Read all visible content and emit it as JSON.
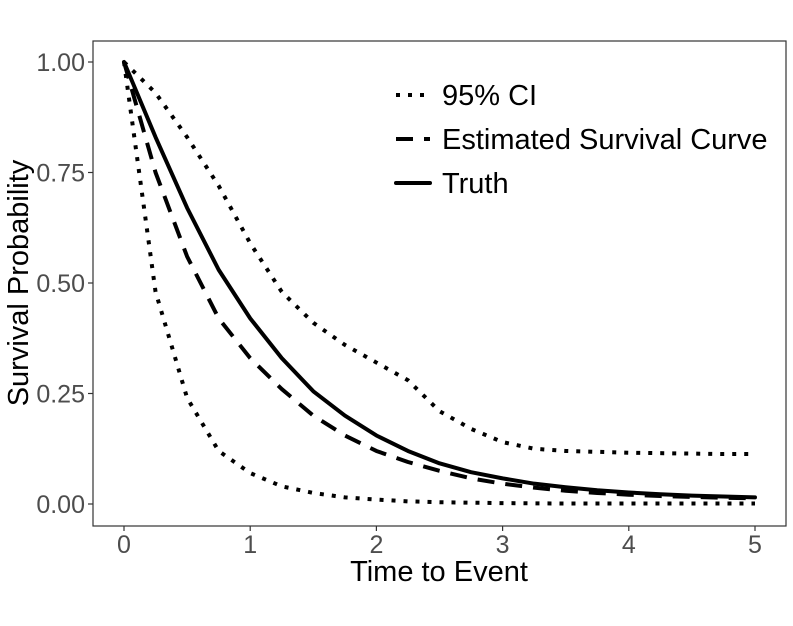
{
  "chart_data": {
    "type": "line",
    "title": "",
    "xlabel": "Time to Event",
    "ylabel": "Survival Probability",
    "xlim": [
      0,
      5
    ],
    "ylim": [
      0,
      1
    ],
    "x_ticks": [
      0,
      1,
      2,
      3,
      4,
      5
    ],
    "x_tick_labels": [
      "0",
      "1",
      "2",
      "3",
      "4",
      "5"
    ],
    "y_ticks": [
      0,
      0.25,
      0.5,
      0.75,
      1
    ],
    "y_tick_labels": [
      "0.00",
      "0.25",
      "0.50",
      "0.75",
      "1.00"
    ],
    "grid": false,
    "legend_position": "top-right",
    "x": [
      0,
      0.25,
      0.5,
      0.75,
      1,
      1.25,
      1.5,
      1.75,
      2,
      2.25,
      2.5,
      2.75,
      3,
      3.25,
      3.5,
      3.75,
      4,
      4.25,
      4.5,
      4.75,
      5
    ],
    "series": [
      {
        "name": "95% CI",
        "style": "dotted",
        "color": "#000000",
        "values": [
          1,
          0.93,
          0.83,
          0.72,
          0.59,
          0.48,
          0.41,
          0.36,
          0.32,
          0.28,
          0.21,
          0.17,
          0.14,
          0.125,
          0.12,
          0.118,
          0.116,
          0.115,
          0.114,
          0.113,
          0.113
        ]
      },
      {
        "name": "95% CI",
        "style": "dotted",
        "color": "#000000",
        "values": [
          1,
          0.48,
          0.24,
          0.12,
          0.07,
          0.04,
          0.025,
          0.015,
          0.01,
          0.006,
          0.004,
          0.003,
          0.002,
          0.0015,
          0.001,
          0.001,
          0.001,
          0.001,
          0.001,
          0.001,
          0.001
        ]
      },
      {
        "name": "Estimated Survival Curve",
        "style": "dashed",
        "color": "#000000",
        "values": [
          1,
          0.75,
          0.56,
          0.42,
          0.33,
          0.26,
          0.2,
          0.155,
          0.12,
          0.095,
          0.075,
          0.058,
          0.046,
          0.037,
          0.03,
          0.025,
          0.021,
          0.018,
          0.016,
          0.014,
          0.013
        ]
      },
      {
        "name": "Truth",
        "style": "solid",
        "color": "#000000",
        "values": [
          1,
          0.83,
          0.67,
          0.53,
          0.42,
          0.33,
          0.255,
          0.2,
          0.155,
          0.12,
          0.092,
          0.072,
          0.058,
          0.046,
          0.038,
          0.031,
          0.026,
          0.022,
          0.019,
          0.017,
          0.015
        ]
      }
    ],
    "legend": [
      {
        "label": "95% CI",
        "style": "dotted"
      },
      {
        "label": "Estimated Survival Curve",
        "style": "dashed"
      },
      {
        "label": "Truth",
        "style": "solid"
      }
    ]
  }
}
